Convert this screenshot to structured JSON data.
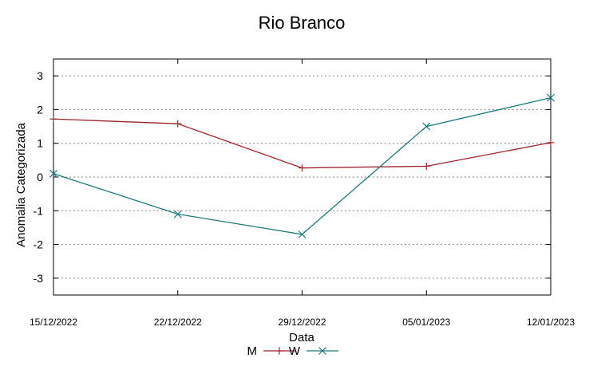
{
  "chart_data": {
    "type": "line",
    "title": "Rio Branco",
    "xlabel": "Data",
    "ylabel": "Anomalia Categorizada",
    "x": [
      "15/12/2022",
      "22/12/2022",
      "29/12/2022",
      "05/01/2023",
      "12/01/2023"
    ],
    "y_ticks": [
      3,
      2,
      1,
      0,
      -1,
      -2,
      -3
    ],
    "ylim": [
      -3.5,
      3.5
    ],
    "grid": true,
    "legend_position": "bottom-center",
    "series": [
      {
        "name": "M",
        "color": "#a0232b",
        "marker": "plus",
        "values": [
          1.72,
          1.58,
          0.27,
          0.32,
          1.02
        ]
      },
      {
        "name": "W",
        "color": "#1f7a7a",
        "marker": "x",
        "values": [
          0.1,
          -1.1,
          -1.7,
          1.5,
          2.35
        ]
      }
    ]
  }
}
